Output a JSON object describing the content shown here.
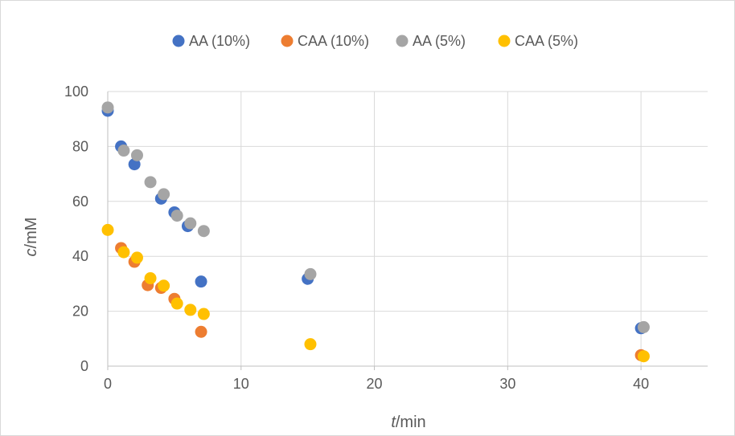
{
  "chart_data": {
    "type": "scatter",
    "title": "",
    "xlabel": {
      "var": "t",
      "unit": "/min"
    },
    "ylabel": {
      "var": "c",
      "unit": "/mM"
    },
    "xlim": [
      0,
      45
    ],
    "ylim": [
      0,
      100
    ],
    "xticks": [
      0,
      10,
      20,
      30,
      40
    ],
    "yticks": [
      0,
      20,
      40,
      60,
      80,
      100
    ],
    "grid": true,
    "legend_position": "top",
    "series": [
      {
        "name": "AA (10%)",
        "color": "#4472C4",
        "points": [
          [
            0,
            93
          ],
          [
            1,
            80
          ],
          [
            2,
            73.5
          ],
          [
            4,
            61
          ],
          [
            5,
            56
          ],
          [
            6,
            51
          ],
          [
            7,
            30.8
          ],
          [
            15,
            31.8
          ],
          [
            40,
            13.8
          ]
        ]
      },
      {
        "name": "CAA (10%)",
        "color": "#ED7D31",
        "points": [
          [
            1,
            43
          ],
          [
            2,
            38
          ],
          [
            3,
            29.5
          ],
          [
            4,
            28.5
          ],
          [
            5,
            24.5
          ],
          [
            7,
            12.5
          ],
          [
            40,
            4
          ]
        ]
      },
      {
        "name": "AA (5%)",
        "color": "#A5A5A5",
        "points": [
          [
            0,
            94.2
          ],
          [
            1.2,
            78.5
          ],
          [
            2.2,
            76.8
          ],
          [
            3.2,
            67
          ],
          [
            4.2,
            62.6
          ],
          [
            5.2,
            54.8
          ],
          [
            6.2,
            52
          ],
          [
            7.2,
            49.2
          ],
          [
            15.2,
            33.5
          ],
          [
            40.2,
            14.2
          ]
        ]
      },
      {
        "name": "CAA (5%)",
        "color": "#FFC000",
        "points": [
          [
            0,
            49.6
          ],
          [
            1.2,
            41.5
          ],
          [
            2.2,
            39.5
          ],
          [
            3.2,
            32
          ],
          [
            4.2,
            29.3
          ],
          [
            5.2,
            22.8
          ],
          [
            6.2,
            20.5
          ],
          [
            7.2,
            19
          ],
          [
            15.2,
            8
          ],
          [
            40.2,
            3.6
          ]
        ]
      }
    ]
  }
}
